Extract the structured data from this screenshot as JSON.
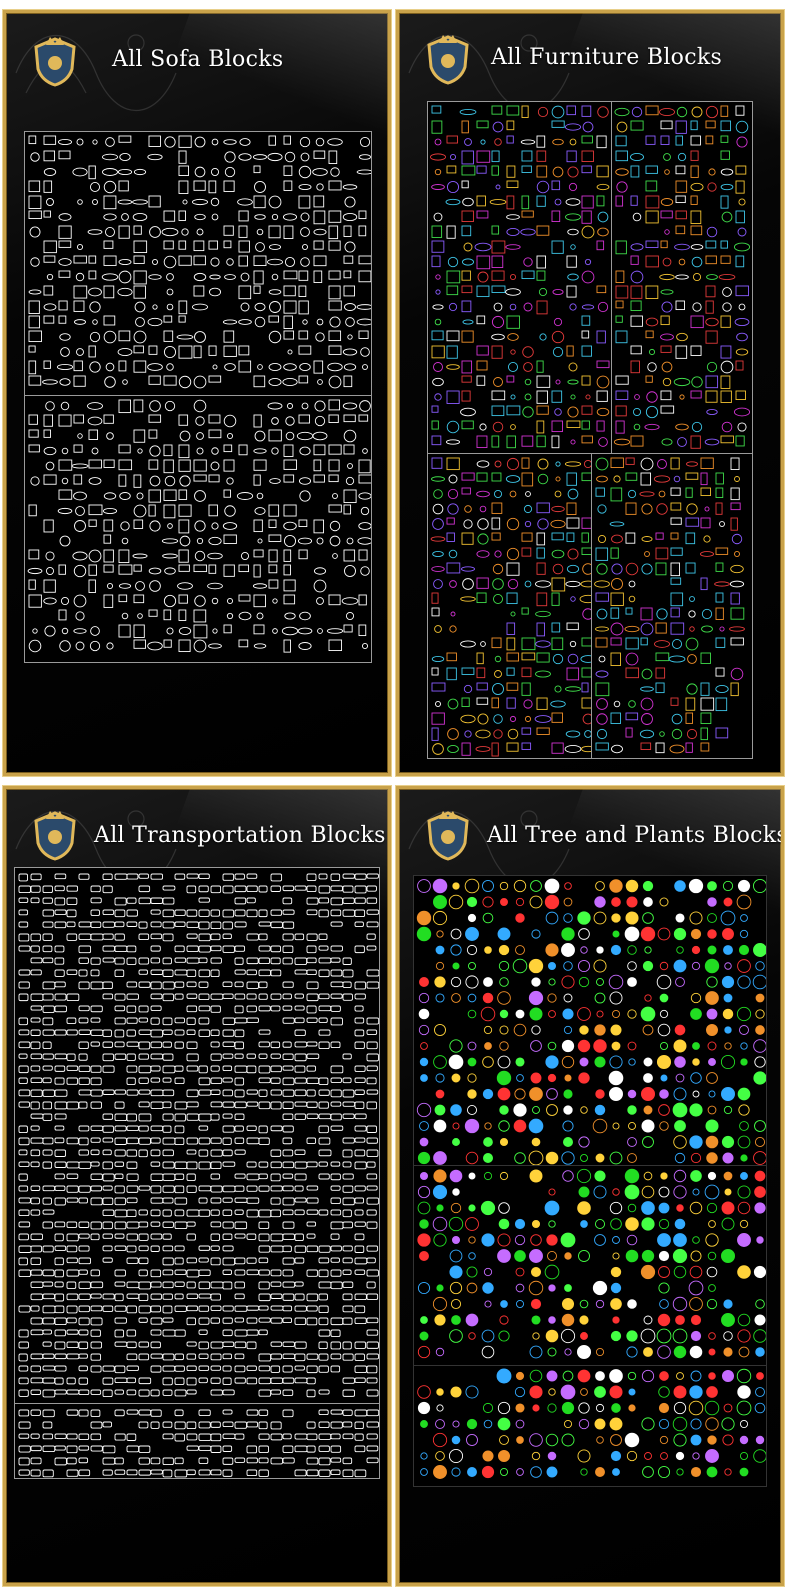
{
  "panels": [
    {
      "key": "sofa",
      "title": "All Sofa Blocks",
      "palette": [
        "#ffffff"
      ],
      "density": "dense"
    },
    {
      "key": "furniture",
      "title": "All Furniture Blocks",
      "palette": [
        "#f2c232",
        "#ffffff",
        "#e23a3a",
        "#d233d2",
        "#3ec6e8",
        "#3fdc4a",
        "#f0902a",
        "#8a5cff"
      ]
    },
    {
      "key": "transportation",
      "title": "All Transportation Blocks",
      "palette": [
        "#ffffff"
      ]
    },
    {
      "key": "trees",
      "title": "All Tree and Plants Blocks",
      "palette": [
        "#22dd22",
        "#44ff44",
        "#ffffff",
        "#ff3333",
        "#ffd23a",
        "#c56cff",
        "#f0902a",
        "#33aaff"
      ]
    }
  ],
  "colors": {
    "frame": "#c9a24a",
    "background": "#000000",
    "title_text": "#ffffff"
  },
  "icons": {
    "logo": "royal-crest-icon"
  }
}
